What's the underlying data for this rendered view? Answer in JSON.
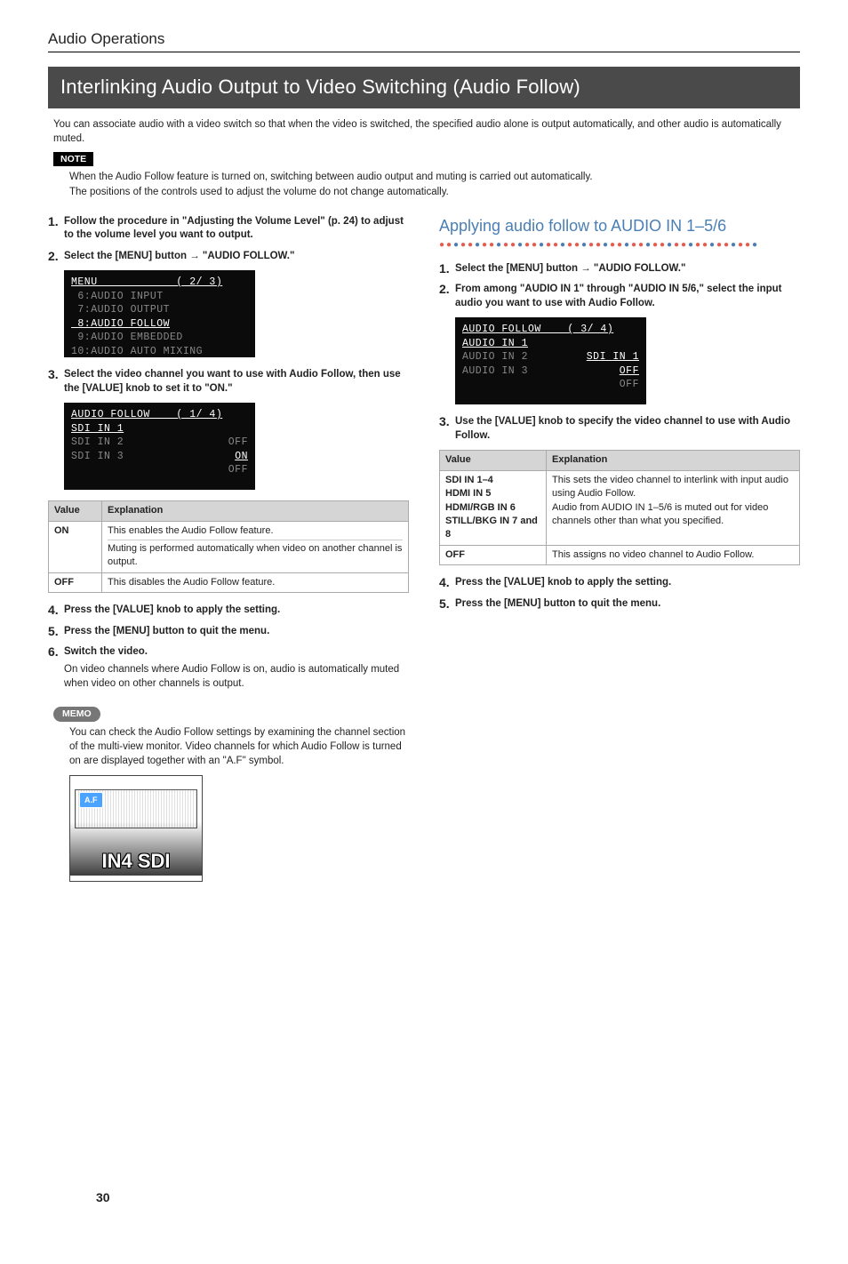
{
  "header": {
    "section": "Audio Operations"
  },
  "title": "Interlinking Audio Output to Video Switching (Audio Follow)",
  "intro": "You can associate audio with a video switch so that when the video is switched, the specified audio alone is output automatically, and other audio is automatically muted.",
  "note": {
    "label": "NOTE",
    "lines": [
      "When the Audio Follow feature is turned on, switching between audio output and muting is carried out automatically.",
      "The positions of the controls used to adjust the volume do not change automatically."
    ]
  },
  "left": {
    "steps": [
      {
        "n": "1.",
        "text": "Follow the procedure in \"Adjusting the Volume Level\" (p. 24) to adjust to the volume level you want to output."
      },
      {
        "n": "2.",
        "text": "Select the [MENU] button → \"AUDIO FOLLOW.\""
      }
    ],
    "lcd1": {
      "header": "MENU            ( 2/ 3)",
      "rows": [
        " 6:AUDIO INPUT",
        " 7:AUDIO OUTPUT",
        " 8:AUDIO FOLLOW",
        " 9:AUDIO EMBEDDED",
        "10:AUDIO AUTO MIXING"
      ],
      "hl_index": 2
    },
    "step3": {
      "n": "3.",
      "text": "Select the video channel you want to use with Audio Follow, then use the [VALUE] knob to set it to \"ON.\""
    },
    "lcd2": {
      "header": "AUDIO FOLLOW    ( 1/ 4)",
      "rows": [
        {
          "label": "SDI IN 1",
          "val": "OFF",
          "hl": true
        },
        {
          "label": "SDI IN 2",
          "val": "ON",
          "hl": false,
          "val_hl": true
        },
        {
          "label": "SDI IN 3",
          "val": "OFF",
          "hl": false
        }
      ]
    },
    "table1": {
      "headers": [
        "Value",
        "Explanation"
      ],
      "rows": [
        {
          "v": "ON",
          "lines": [
            "This enables the Audio Follow feature.",
            "Muting is performed automatically when video on another channel is output."
          ]
        },
        {
          "v": "OFF",
          "lines": [
            "This disables the Audio Follow feature."
          ]
        }
      ]
    },
    "steps_tail": [
      {
        "n": "4.",
        "text": "Press the [VALUE] knob to apply the setting."
      },
      {
        "n": "5.",
        "text": "Press the [MENU] button to quit the menu."
      },
      {
        "n": "6.",
        "text": "Switch the video.",
        "sub": "On video channels where Audio Follow is on, audio is automatically muted when video on other channels is output."
      }
    ],
    "memo": {
      "label": "MEMO",
      "text": "You can check the Audio Follow settings by examining the channel section of the multi-view monitor. Video channels for which Audio Follow is turned on are displayed together with an \"A.F\" symbol.",
      "badge": "A.F",
      "caption": "IN4 SDI"
    }
  },
  "right": {
    "heading": "Applying audio follow to AUDIO IN 1–5/6",
    "steps_top": [
      {
        "n": "1.",
        "text": "Select the [MENU] button → \"AUDIO FOLLOW.\""
      },
      {
        "n": "2.",
        "text": "From among \"AUDIO IN 1\" through \"AUDIO IN 5/6,\" select the input audio you want to use with Audio Follow."
      }
    ],
    "lcd3": {
      "header": "AUDIO FOLLOW    ( 3/ 4)",
      "rows": [
        {
          "label": "AUDIO IN 1",
          "val": "SDI IN 1",
          "hl": true,
          "val_hl": true
        },
        {
          "label": "AUDIO IN 2",
          "val": "OFF",
          "hl": false,
          "val_hl": true
        },
        {
          "label": "AUDIO IN 3",
          "val": "OFF",
          "hl": false
        }
      ]
    },
    "step3": {
      "n": "3.",
      "text": "Use the [VALUE] knob to specify the video channel to use with Audio Follow."
    },
    "table2": {
      "headers": [
        "Value",
        "Explanation"
      ],
      "group": {
        "vals": [
          "SDI IN 1–4",
          "HDMI IN 5",
          "HDMI/RGB IN 6",
          "STILL/BKG IN 7 and 8"
        ],
        "exp": [
          "This sets the video channel to interlink with input audio using Audio Follow.",
          "Audio from AUDIO IN 1–5/6 is muted out for video channels other than what you specified."
        ]
      },
      "off_row": {
        "v": "OFF",
        "exp": "This assigns no video channel to Audio Follow."
      }
    },
    "steps_tail": [
      {
        "n": "4.",
        "text": "Press the [VALUE] knob to apply the setting."
      },
      {
        "n": "5.",
        "text": "Press the [MENU] button to quit the menu."
      }
    ]
  },
  "page": "30"
}
